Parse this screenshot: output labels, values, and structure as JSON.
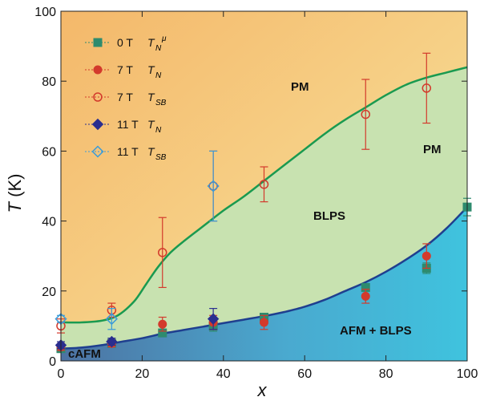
{
  "chart_data": {
    "type": "scatter",
    "xlabel": "x",
    "ylabel": "T (K)",
    "xlim": [
      0,
      100
    ],
    "ylim": [
      0,
      100
    ],
    "xticks": [
      0,
      20,
      40,
      60,
      80,
      100
    ],
    "yticks": [
      0,
      20,
      40,
      60,
      80,
      100
    ],
    "xtick_labels": [
      "0",
      "20",
      "40",
      "60",
      "80",
      "100"
    ],
    "ytick_labels": [
      "0",
      "20",
      "40",
      "60",
      "80",
      "100"
    ],
    "grid": false,
    "legend_position": "top-left",
    "colors": {
      "series_0T": "#2e8b6e",
      "series_7T": "#d33a2c",
      "series_11T": "#2a2e8f",
      "series_11T_SB": "#3a9bd9",
      "upper_boundary": "#1a9a50",
      "lower_boundary": "#1f3f8f",
      "bg_warm": "#f4b86a",
      "bg_light": "#f8e6a0",
      "blps": "#c8e2b0",
      "afm_left": "#4d72a2",
      "afm_right": "#3fc3de"
    },
    "region_labels": [
      "PM",
      "PM",
      "BLPS",
      "AFM + BLPS",
      "cAFM"
    ],
    "series": [
      {
        "field": "0 T",
        "symbol": "T",
        "subscript": "N",
        "superscript": "μ",
        "marker": "square-filled",
        "x": [
          0,
          12.5,
          25,
          37.5,
          50,
          75,
          90,
          100
        ],
        "y": [
          3.5,
          5,
          8,
          10,
          12.5,
          21,
          26.5,
          44
        ],
        "err": [
          0.8,
          1,
          1,
          1.5,
          1,
          1,
          1.5,
          2.5
        ]
      },
      {
        "field": "7 T",
        "symbol": "T",
        "subscript": "N",
        "superscript": "",
        "marker": "circle-filled",
        "x": [
          0,
          12.5,
          25,
          37.5,
          50,
          75,
          90
        ],
        "y": [
          4,
          5,
          10.5,
          11,
          11,
          18.5,
          30
        ],
        "err": [
          1,
          1,
          2,
          2,
          2,
          2,
          3.5
        ]
      },
      {
        "field": "7 T",
        "symbol": "T",
        "subscript": "SB",
        "superscript": "",
        "marker": "circle-open",
        "x": [
          0,
          12.5,
          25,
          37.5,
          50,
          75,
          90
        ],
        "y": [
          10,
          14.5,
          31,
          50,
          50.5,
          70.5,
          78
        ],
        "err": [
          2,
          2,
          10,
          10,
          5,
          10,
          10
        ]
      },
      {
        "field": "11 T",
        "symbol": "T",
        "subscript": "N",
        "superscript": "",
        "marker": "diamond-filled",
        "x": [
          0,
          12.5,
          37.5
        ],
        "y": [
          4.5,
          5.5,
          12
        ],
        "err": [
          1,
          1,
          3
        ]
      },
      {
        "field": "11 T",
        "symbol": "T",
        "subscript": "SB",
        "superscript": "",
        "marker": "diamond-open",
        "x": [
          0,
          12.5,
          37.5
        ],
        "y": [
          12,
          12,
          50
        ],
        "err": [
          1,
          3,
          10
        ]
      }
    ],
    "boundaries": {
      "upper": {
        "x": [
          0,
          5,
          10,
          14,
          18,
          21,
          24,
          27,
          30,
          35,
          40,
          45,
          50,
          55,
          60,
          65,
          70,
          75,
          80,
          85,
          90,
          95,
          100
        ],
        "y": [
          11,
          11,
          11.5,
          13,
          17,
          22,
          27,
          31,
          34,
          38.5,
          43,
          47,
          51.5,
          56,
          60.5,
          65,
          69,
          72.5,
          76,
          79,
          81,
          82.5,
          84
        ]
      },
      "lower": {
        "x": [
          0,
          5,
          10,
          15,
          20,
          25,
          30,
          35,
          40,
          45,
          50,
          55,
          60,
          65,
          70,
          75,
          80,
          85,
          90,
          95,
          100
        ],
        "y": [
          3.5,
          3.8,
          4.5,
          5.5,
          6.5,
          7.8,
          8.8,
          9.8,
          10.8,
          11.8,
          12.8,
          14,
          15.5,
          17.5,
          20,
          22.5,
          25.5,
          29,
          33,
          38,
          44
        ]
      }
    }
  }
}
